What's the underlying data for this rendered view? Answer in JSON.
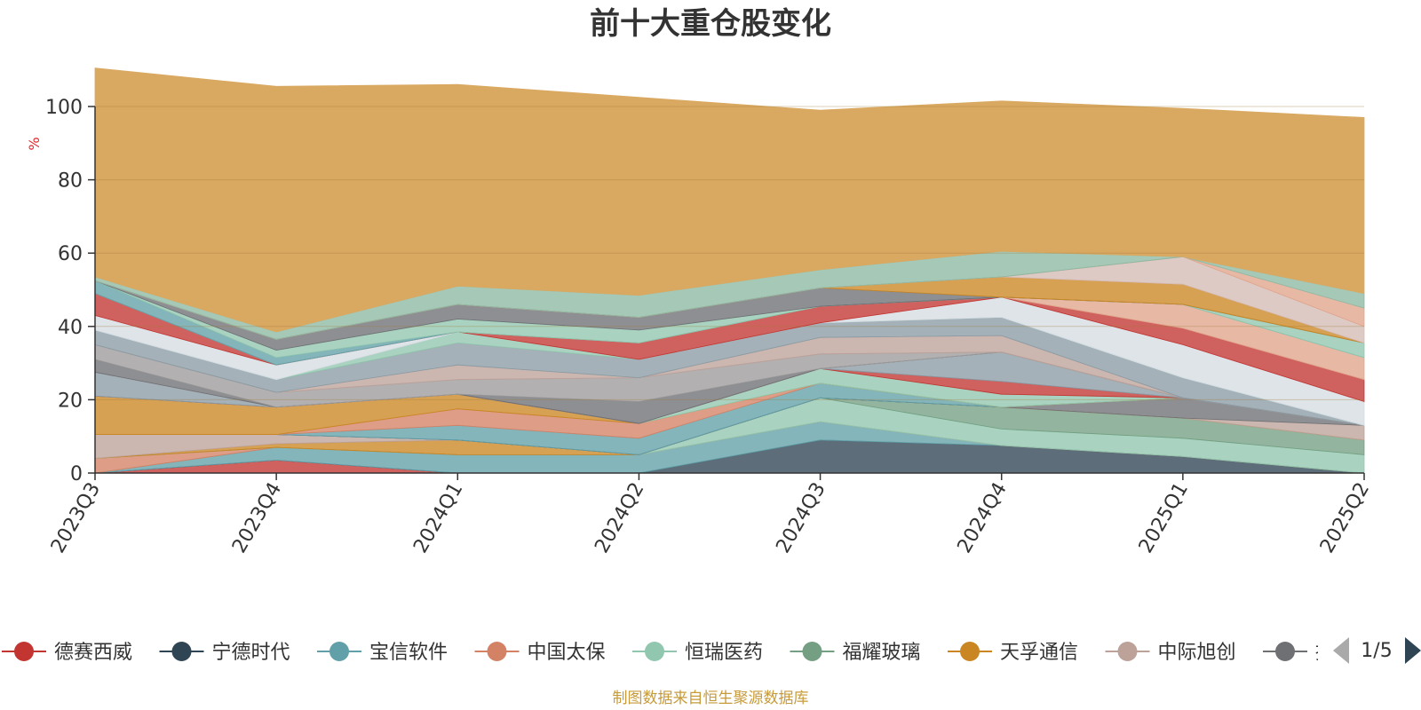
{
  "title": "前十大重仓股变化",
  "footer": "制图数据来自恒生聚源数据库",
  "colors": {
    "footer": "#c79a3a",
    "unit": "#e0282e",
    "background_area": "#d9a962"
  },
  "chart_data": {
    "type": "area",
    "title": "前十大重仓股变化",
    "ylabel": "%",
    "ylim": [
      0,
      100
    ],
    "yticks": [
      0,
      20,
      40,
      60,
      80,
      100
    ],
    "categories": [
      "2023Q3",
      "2023Q4",
      "2024Q1",
      "2024Q2",
      "2024Q3",
      "2024Q4",
      "2025Q1",
      "2025Q2"
    ],
    "grid": true,
    "series": [
      {
        "name": "德赛西威",
        "color": "#c23531",
        "values": [
          0,
          3.5,
          0,
          0,
          0,
          0,
          0,
          0
        ]
      },
      {
        "name": "宁德时代",
        "color": "#2f4554",
        "values": [
          0,
          0,
          0,
          0,
          9,
          7.5,
          4.5,
          0
        ]
      },
      {
        "name": "宝信软件",
        "color": "#61a0a8",
        "values": [
          0,
          3.5,
          5,
          5,
          5,
          0,
          0,
          0
        ]
      },
      {
        "name": "中国太保",
        "color": "#d48265",
        "values": [
          4,
          0,
          0,
          0,
          0,
          0,
          0,
          0
        ]
      },
      {
        "name": "恒瑞医药",
        "color": "#91c7ae",
        "values": [
          0,
          0,
          0,
          0,
          6.5,
          4.5,
          5,
          5
        ]
      },
      {
        "name": "福耀玻璃",
        "color": "#749f83",
        "values": [
          0,
          0,
          0,
          0,
          0,
          6,
          5.5,
          4
        ]
      },
      {
        "name": "天孚通信",
        "color": "#ca8622",
        "values": [
          0,
          1,
          4,
          0,
          0,
          0,
          0,
          0
        ]
      },
      {
        "name": "中际旭创",
        "color": "#bda29a",
        "values": [
          6.5,
          2.5,
          0,
          0,
          0,
          0,
          0,
          4
        ]
      },
      {
        "name": "",
        "color": "#6e7074",
        "values": [
          0,
          0,
          0,
          0,
          0,
          0,
          5.5,
          0
        ]
      },
      {
        "name": "",
        "color": "#546570",
        "values": [
          0,
          0,
          0,
          0,
          0,
          0,
          0,
          0
        ]
      },
      {
        "name": "",
        "color": "#61a0a8",
        "values": [
          0,
          0,
          4,
          4.5,
          4,
          0,
          0,
          0
        ]
      },
      {
        "name": "",
        "color": "#d48265",
        "values": [
          0,
          0,
          4.5,
          4,
          0,
          0,
          0,
          0
        ]
      },
      {
        "name": "",
        "color": "#ca8622",
        "values": [
          10.5,
          7.5,
          4,
          0,
          0,
          0,
          0,
          0
        ]
      },
      {
        "name": "",
        "color": "#91c7ae",
        "values": [
          0,
          0,
          0,
          0,
          4,
          3.5,
          0,
          0
        ]
      },
      {
        "name": "",
        "color": "#c23531",
        "values": [
          0,
          0,
          0,
          0,
          0,
          3.5,
          0,
          0
        ]
      },
      {
        "name": "",
        "color": "#8a9ba4",
        "values": [
          6.5,
          0,
          0,
          0,
          0,
          8,
          0,
          0
        ]
      },
      {
        "name": "",
        "color": "#bda29a",
        "values": [
          0,
          0,
          0,
          0,
          0,
          0,
          0,
          0
        ]
      },
      {
        "name": "",
        "color": "#6e7074",
        "values": [
          3.5,
          0,
          0,
          6,
          0,
          0,
          0,
          0
        ]
      },
      {
        "name": "",
        "color": "#9c9a9a",
        "values": [
          4,
          4,
          4,
          6.5,
          4,
          0,
          0,
          0
        ]
      },
      {
        "name": "",
        "color": "#bda29a",
        "values": [
          0,
          0,
          4,
          0,
          4.5,
          4.5,
          0,
          0
        ]
      },
      {
        "name": "",
        "color": "#8a9ba4",
        "values": [
          4,
          3.5,
          6,
          5,
          4,
          5,
          5.5,
          0
        ]
      },
      {
        "name": "",
        "color": "#91c7ae",
        "values": [
          0,
          0,
          3,
          0,
          0,
          0,
          0,
          0
        ]
      },
      {
        "name": "",
        "color": "#d6dce3",
        "values": [
          4,
          4,
          0,
          0,
          0,
          5.5,
          9,
          6.5
        ]
      },
      {
        "name": "",
        "color": "#c23531",
        "values": [
          6,
          0,
          0,
          4.5,
          4.5,
          0,
          4.5,
          6
        ]
      },
      {
        "name": "",
        "color": "#e0a58c",
        "values": [
          0,
          0,
          0,
          0,
          0,
          0,
          6.5,
          6
        ]
      },
      {
        "name": "",
        "color": "#61a0a8",
        "values": [
          3.5,
          2,
          0,
          0,
          0,
          0,
          0,
          0
        ]
      },
      {
        "name": "",
        "color": "#91c7ae",
        "values": [
          0,
          2,
          3.5,
          3.5,
          0,
          0,
          0,
          4
        ]
      },
      {
        "name": "",
        "color": "#6e7074",
        "values": [
          0,
          3,
          4,
          3.5,
          5,
          0,
          0,
          0
        ]
      },
      {
        "name": "",
        "color": "#ca8622",
        "values": [
          0,
          0,
          0,
          0,
          0,
          5.5,
          5.5,
          0
        ]
      },
      {
        "name": "",
        "color": "#d5bbb5",
        "values": [
          0,
          0,
          0,
          0,
          0,
          0,
          7.5,
          4.5
        ]
      },
      {
        "name": "",
        "color": "#e0a58c",
        "values": [
          0,
          0,
          0,
          0,
          0,
          0,
          0,
          5
        ]
      },
      {
        "name": "",
        "color": "#8db8a3",
        "values": [
          1,
          2,
          5,
          6,
          5,
          7,
          0,
          4
        ]
      },
      {
        "name": "",
        "color": "#d9a962",
        "values": [
          57,
          67,
          55,
          54,
          43.5,
          41,
          40.5,
          48
        ]
      }
    ]
  },
  "legend": {
    "items": [
      {
        "label": "德赛西威",
        "color": "#c23531"
      },
      {
        "label": "宁德时代",
        "color": "#2f4554"
      },
      {
        "label": "宝信软件",
        "color": "#61a0a8"
      },
      {
        "label": "中国太保",
        "color": "#d48265"
      },
      {
        "label": "恒瑞医药",
        "color": "#91c7ae"
      },
      {
        "label": "福耀玻璃",
        "color": "#749f83"
      },
      {
        "label": "天孚通信",
        "color": "#ca8622"
      },
      {
        "label": "中际旭创",
        "color": "#bda29a"
      },
      {
        "label": "招",
        "color": "#6e7074"
      }
    ],
    "page_indicator": "1/5",
    "prev_icon": "triangle-left-icon",
    "next_icon": "triangle-right-icon"
  }
}
